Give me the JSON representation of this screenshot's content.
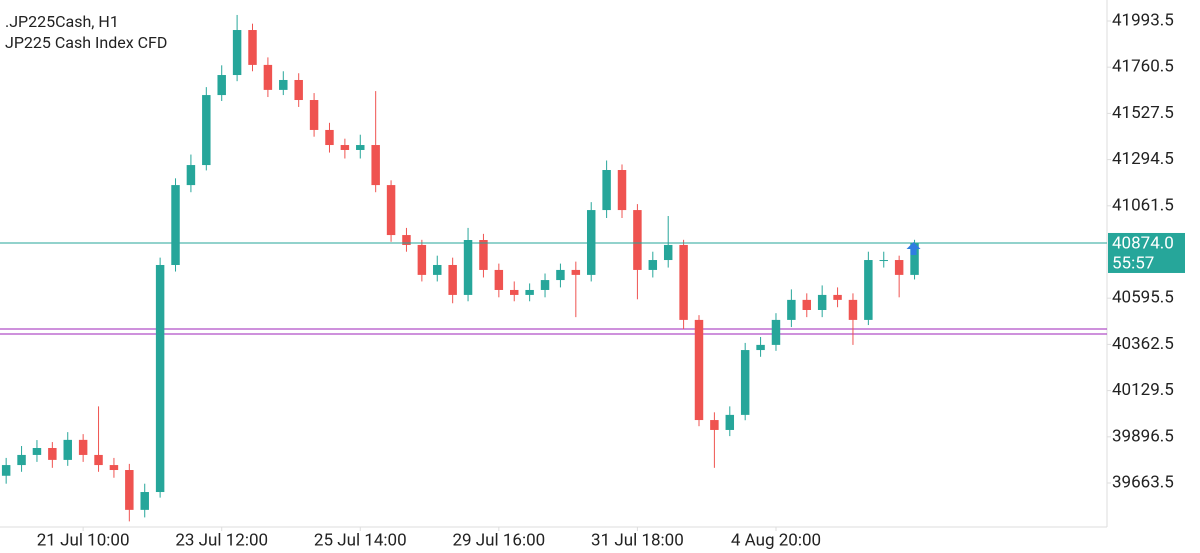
{
  "chart_data": {
    "type": "candlestick",
    "title": ".JP225Cash, H1",
    "subtitle": "JP225 Cash Index CFD",
    "up_color": "#26a69a",
    "down_color": "#ef5350",
    "open": [
      39700,
      39754,
      39805,
      39840,
      39780,
      39881,
      39805,
      39754,
      39729,
      39528,
      39618,
      40763,
      41166,
      41267,
      41620,
      41721,
      41948,
      41772,
      41646,
      41696,
      41595,
      41444,
      41368,
      41343,
      41368,
      41166,
      40914,
      40864,
      40713,
      40763,
      40612,
      40889,
      40738,
      40637,
      40612,
      40637,
      40687,
      40738,
      40713,
      41040,
      41242,
      41040,
      40738,
      40788,
      40864,
      40486,
      39981,
      39931,
      40007,
      40334,
      40360,
      40486,
      40587,
      40536,
      40612,
      40587,
      40486,
      40788,
      40788,
      40713
    ],
    "high": [
      39790,
      39850,
      39880,
      39870,
      39920,
      39910,
      40050,
      39790,
      39760,
      39660,
      40800,
      41200,
      41320,
      41660,
      41770,
      42024,
      41980,
      41810,
      41740,
      41730,
      41630,
      41480,
      41400,
      41420,
      41640,
      41190,
      40950,
      40890,
      40810,
      40800,
      40950,
      40920,
      40770,
      40680,
      40670,
      40720,
      40770,
      40780,
      41080,
      41290,
      41270,
      41070,
      40830,
      41010,
      40890,
      40510,
      40020,
      40050,
      40370,
      40400,
      40520,
      40640,
      40620,
      40660,
      40650,
      40620,
      40830,
      40830,
      40810,
      40890
    ],
    "low": [
      39660,
      39720,
      39770,
      39740,
      39750,
      39770,
      39720,
      39690,
      39470,
      39490,
      39590,
      40730,
      41130,
      41240,
      41590,
      41690,
      41740,
      41610,
      41620,
      41560,
      41410,
      41330,
      41300,
      41300,
      41130,
      40880,
      40830,
      40680,
      40680,
      40570,
      40580,
      40700,
      40600,
      40580,
      40580,
      40600,
      40650,
      40500,
      40680,
      41000,
      41000,
      40590,
      40700,
      40750,
      40440,
      39950,
      39740,
      39900,
      39980,
      40300,
      40330,
      40450,
      40500,
      40500,
      40550,
      40360,
      40460,
      40750,
      40600,
      40690
    ],
    "close": [
      39754,
      39805,
      39840,
      39780,
      39881,
      39805,
      39754,
      39729,
      39528,
      39618,
      40763,
      41166,
      41267,
      41620,
      41721,
      41948,
      41772,
      41646,
      41696,
      41595,
      41444,
      41368,
      41343,
      41368,
      41166,
      40914,
      40864,
      40713,
      40763,
      40612,
      40889,
      40738,
      40637,
      40612,
      40637,
      40687,
      40738,
      40713,
      41040,
      41242,
      41040,
      40738,
      40788,
      40864,
      40486,
      39981,
      39931,
      40007,
      40334,
      40360,
      40486,
      40587,
      40536,
      40612,
      40587,
      40486,
      40788,
      40788,
      40713,
      40874
    ],
    "xlim": [
      -0.4,
      71.5
    ],
    "xticks": [
      {
        "value": 5,
        "label": "21 Jul 10:00"
      },
      {
        "value": 14,
        "label": "23 Jul 12:00"
      },
      {
        "value": 23,
        "label": "25 Jul 14:00"
      },
      {
        "value": 32,
        "label": "29 Jul 16:00"
      },
      {
        "value": 41,
        "label": "31 Jul 18:00"
      },
      {
        "value": 50,
        "label": "4 Aug 20:00"
      }
    ],
    "ylim": [
      39441.6,
      42099.4
    ],
    "yticks": [
      41993.5,
      41760.5,
      41527.5,
      41294.5,
      41061.5,
      40595.5,
      40362.5,
      40129.5,
      39896.5,
      39663.5
    ],
    "levels": [
      {
        "value": 40440,
        "color": "#b04fc8"
      },
      {
        "value": 40415,
        "color": "#b04fc8"
      }
    ],
    "last_price": {
      "value": 40874,
      "label": "40874.0",
      "color": "#26a69a"
    },
    "countdown": "55:57"
  }
}
